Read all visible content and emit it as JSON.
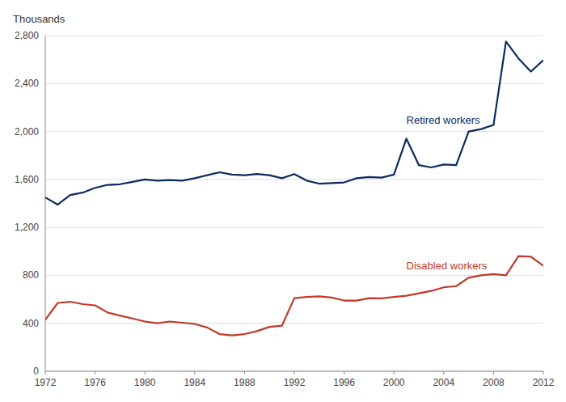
{
  "chart_data": {
    "type": "line",
    "y_label": "Thousands",
    "x": [
      1972,
      1973,
      1974,
      1975,
      1976,
      1977,
      1978,
      1979,
      1980,
      1981,
      1982,
      1983,
      1984,
      1985,
      1986,
      1987,
      1988,
      1989,
      1990,
      1991,
      1992,
      1993,
      1994,
      1995,
      1996,
      1997,
      1998,
      1999,
      2000,
      2001,
      2002,
      2003,
      2004,
      2005,
      2006,
      2007,
      2008,
      2009,
      2010,
      2011,
      2012
    ],
    "series": [
      {
        "name": "Retired workers",
        "color": "#0d2b5e",
        "values": [
          1450,
          1390,
          1470,
          1490,
          1530,
          1555,
          1560,
          1580,
          1600,
          1590,
          1595,
          1590,
          1610,
          1635,
          1660,
          1640,
          1635,
          1645,
          1635,
          1610,
          1645,
          1590,
          1565,
          1570,
          1575,
          1610,
          1620,
          1615,
          1640,
          1940,
          1720,
          1700,
          1725,
          1720,
          2000,
          2020,
          2055,
          2750,
          2610,
          2500,
          2595
        ]
      },
      {
        "name": "Disabled workers",
        "color": "#c0392b",
        "values": [
          430,
          570,
          580,
          560,
          550,
          490,
          465,
          440,
          415,
          400,
          415,
          405,
          395,
          365,
          310,
          300,
          310,
          335,
          370,
          380,
          610,
          620,
          625,
          615,
          590,
          590,
          610,
          608,
          620,
          630,
          650,
          670,
          700,
          710,
          780,
          800,
          810,
          800,
          960,
          955,
          880
        ]
      }
    ],
    "xlim": [
      1972,
      2012
    ],
    "xticks": [
      1972,
      1976,
      1980,
      1984,
      1988,
      1992,
      1996,
      2000,
      2004,
      2008,
      2012
    ],
    "ylim": [
      0,
      2800
    ],
    "yticks": [
      0,
      400,
      800,
      {
        "value": 1200,
        "label": "1,200"
      },
      {
        "value": 1600,
        "label": "1,600"
      },
      {
        "value": 2000,
        "label": "2,000"
      },
      {
        "value": 2400,
        "label": "2,400"
      },
      {
        "value": 2800,
        "label": "2,800"
      }
    ],
    "grid": true
  }
}
